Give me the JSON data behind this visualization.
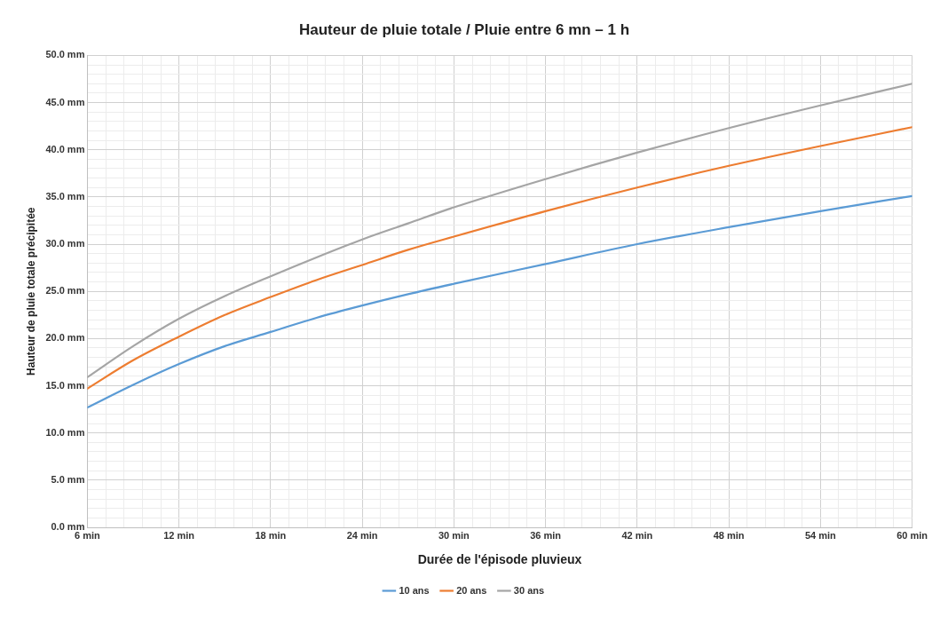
{
  "chart_data": {
    "type": "line",
    "title": "Hauteur de pluie totale / Pluie entre 6 mn – 1 h",
    "xlabel": "Durée de l'épisode pluvieux",
    "ylabel": "Hauteur de pluie totale précipitée",
    "x": [
      6,
      9,
      12,
      15,
      18,
      21,
      24,
      27,
      30,
      36,
      42,
      48,
      54,
      60
    ],
    "series": [
      {
        "name": "10 ans",
        "color": "#5b9bd5",
        "values": [
          12.7,
          15.1,
          17.3,
          19.2,
          20.7,
          22.2,
          23.5,
          24.7,
          25.8,
          27.9,
          30.0,
          31.8,
          33.5,
          35.1
        ]
      },
      {
        "name": "20 ans",
        "color": "#ed7d31",
        "values": [
          14.7,
          17.7,
          20.2,
          22.5,
          24.4,
          26.2,
          27.8,
          29.4,
          30.8,
          33.5,
          36.0,
          38.3,
          40.4,
          42.4
        ]
      },
      {
        "name": "30 ans",
        "color": "#a5a5a5",
        "values": [
          15.9,
          19.2,
          22.1,
          24.5,
          26.6,
          28.6,
          30.5,
          32.2,
          33.9,
          36.9,
          39.7,
          42.3,
          44.7,
          47.0
        ]
      }
    ],
    "xlim": [
      6,
      60
    ],
    "xticks": [
      {
        "value": 6,
        "label": "6 min"
      },
      {
        "value": 7.2,
        "label": null
      },
      {
        "value": 8.4,
        "label": null
      },
      {
        "value": 9.6,
        "label": null
      },
      {
        "value": 10.8,
        "label": null
      },
      {
        "value": 12,
        "label": "12 min"
      },
      {
        "value": 13.2,
        "label": null
      },
      {
        "value": 14.4,
        "label": null
      },
      {
        "value": 15.6,
        "label": null
      },
      {
        "value": 16.8,
        "label": null
      },
      {
        "value": 18,
        "label": "18 min"
      },
      {
        "value": 19.2,
        "label": null
      },
      {
        "value": 20.4,
        "label": null
      },
      {
        "value": 21.6,
        "label": null
      },
      {
        "value": 22.8,
        "label": null
      },
      {
        "value": 24,
        "label": "24 min"
      },
      {
        "value": 25.2,
        "label": null
      },
      {
        "value": 26.4,
        "label": null
      },
      {
        "value": 27.6,
        "label": null
      },
      {
        "value": 28.8,
        "label": null
      },
      {
        "value": 30,
        "label": "30 min"
      },
      {
        "value": 31.2,
        "label": null
      },
      {
        "value": 32.4,
        "label": null
      },
      {
        "value": 33.6,
        "label": null
      },
      {
        "value": 34.8,
        "label": null
      },
      {
        "value": 36,
        "label": "36 min"
      },
      {
        "value": 37.2,
        "label": null
      },
      {
        "value": 38.4,
        "label": null
      },
      {
        "value": 39.6,
        "label": null
      },
      {
        "value": 40.8,
        "label": null
      },
      {
        "value": 42,
        "label": "42 min"
      },
      {
        "value": 43.2,
        "label": null
      },
      {
        "value": 44.4,
        "label": null
      },
      {
        "value": 45.6,
        "label": null
      },
      {
        "value": 46.8,
        "label": null
      },
      {
        "value": 48,
        "label": "48 min"
      },
      {
        "value": 49.2,
        "label": null
      },
      {
        "value": 50.4,
        "label": null
      },
      {
        "value": 51.6,
        "label": null
      },
      {
        "value": 52.8,
        "label": null
      },
      {
        "value": 54,
        "label": "54 min"
      },
      {
        "value": 55.2,
        "label": null
      },
      {
        "value": 56.4,
        "label": null
      },
      {
        "value": 57.6,
        "label": null
      },
      {
        "value": 58.8,
        "label": null
      },
      {
        "value": 60,
        "label": "60 min"
      }
    ],
    "ylim": [
      0,
      50
    ],
    "yticks": [
      {
        "value": 0,
        "label": "0.0 mm"
      },
      {
        "value": 1,
        "label": null
      },
      {
        "value": 2,
        "label": null
      },
      {
        "value": 3,
        "label": null
      },
      {
        "value": 4,
        "label": null
      },
      {
        "value": 5,
        "label": "5.0 mm"
      },
      {
        "value": 6,
        "label": null
      },
      {
        "value": 7,
        "label": null
      },
      {
        "value": 8,
        "label": null
      },
      {
        "value": 9,
        "label": null
      },
      {
        "value": 10,
        "label": "10.0 mm"
      },
      {
        "value": 11,
        "label": null
      },
      {
        "value": 12,
        "label": null
      },
      {
        "value": 13,
        "label": null
      },
      {
        "value": 14,
        "label": null
      },
      {
        "value": 15,
        "label": "15.0 mm"
      },
      {
        "value": 16,
        "label": null
      },
      {
        "value": 17,
        "label": null
      },
      {
        "value": 18,
        "label": null
      },
      {
        "value": 19,
        "label": null
      },
      {
        "value": 20,
        "label": "20.0 mm"
      },
      {
        "value": 21,
        "label": null
      },
      {
        "value": 22,
        "label": null
      },
      {
        "value": 23,
        "label": null
      },
      {
        "value": 24,
        "label": null
      },
      {
        "value": 25,
        "label": "25.0 mm"
      },
      {
        "value": 26,
        "label": null
      },
      {
        "value": 27,
        "label": null
      },
      {
        "value": 28,
        "label": null
      },
      {
        "value": 29,
        "label": null
      },
      {
        "value": 30,
        "label": "30.0 mm"
      },
      {
        "value": 31,
        "label": null
      },
      {
        "value": 32,
        "label": null
      },
      {
        "value": 33,
        "label": null
      },
      {
        "value": 34,
        "label": null
      },
      {
        "value": 35,
        "label": "35.0 mm"
      },
      {
        "value": 36,
        "label": null
      },
      {
        "value": 37,
        "label": null
      },
      {
        "value": 38,
        "label": null
      },
      {
        "value": 39,
        "label": null
      },
      {
        "value": 40,
        "label": "40.0 mm"
      },
      {
        "value": 41,
        "label": null
      },
      {
        "value": 42,
        "label": null
      },
      {
        "value": 43,
        "label": null
      },
      {
        "value": 44,
        "label": null
      },
      {
        "value": 45,
        "label": "45.0 mm"
      },
      {
        "value": 46,
        "label": null
      },
      {
        "value": 47,
        "label": null
      },
      {
        "value": 48,
        "label": null
      },
      {
        "value": 49,
        "label": null
      },
      {
        "value": 50,
        "label": "50.0 mm"
      }
    ],
    "grid": true,
    "legend": "bottom",
    "marker": "none",
    "line_style": "solid"
  }
}
